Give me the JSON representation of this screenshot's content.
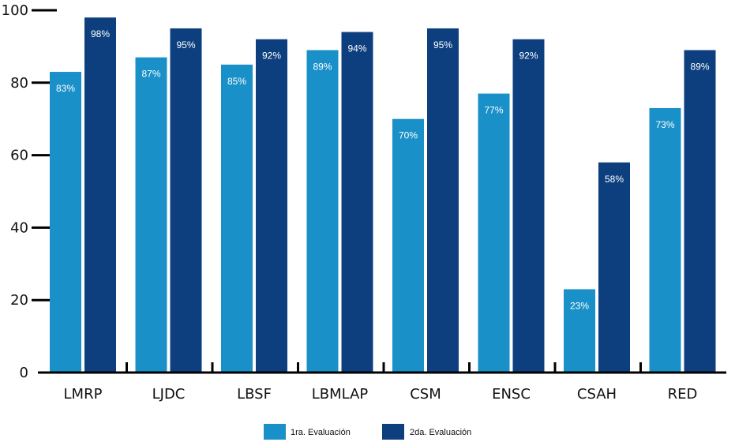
{
  "chart_data": {
    "type": "bar",
    "title": "",
    "xlabel": "",
    "ylabel": "",
    "ylim": [
      0,
      100
    ],
    "yticks": [
      0,
      20,
      40,
      60,
      80,
      100
    ],
    "categories": [
      "LMRP",
      "LJDC",
      "LBSF",
      "LBMLAP",
      "CSM",
      "ENSC",
      "CSAH",
      "RED"
    ],
    "series": [
      {
        "name": "1ra. Evaluación",
        "color": "#1a90c8",
        "values": [
          83,
          87,
          85,
          89,
          70,
          77,
          23,
          73
        ],
        "labels": [
          "83%",
          "87%",
          "85%",
          "89%",
          "70%",
          "77%",
          "23%",
          "73%"
        ]
      },
      {
        "name": "2da. Evaluación",
        "color": "#0d3f7f",
        "values": [
          98,
          95,
          92,
          94,
          95,
          92,
          58,
          89
        ],
        "labels": [
          "98%",
          "95%",
          "92%",
          "94%",
          "95%",
          "92%",
          "58%",
          "89%"
        ]
      }
    ],
    "legend_position": "bottom",
    "grid": false
  }
}
